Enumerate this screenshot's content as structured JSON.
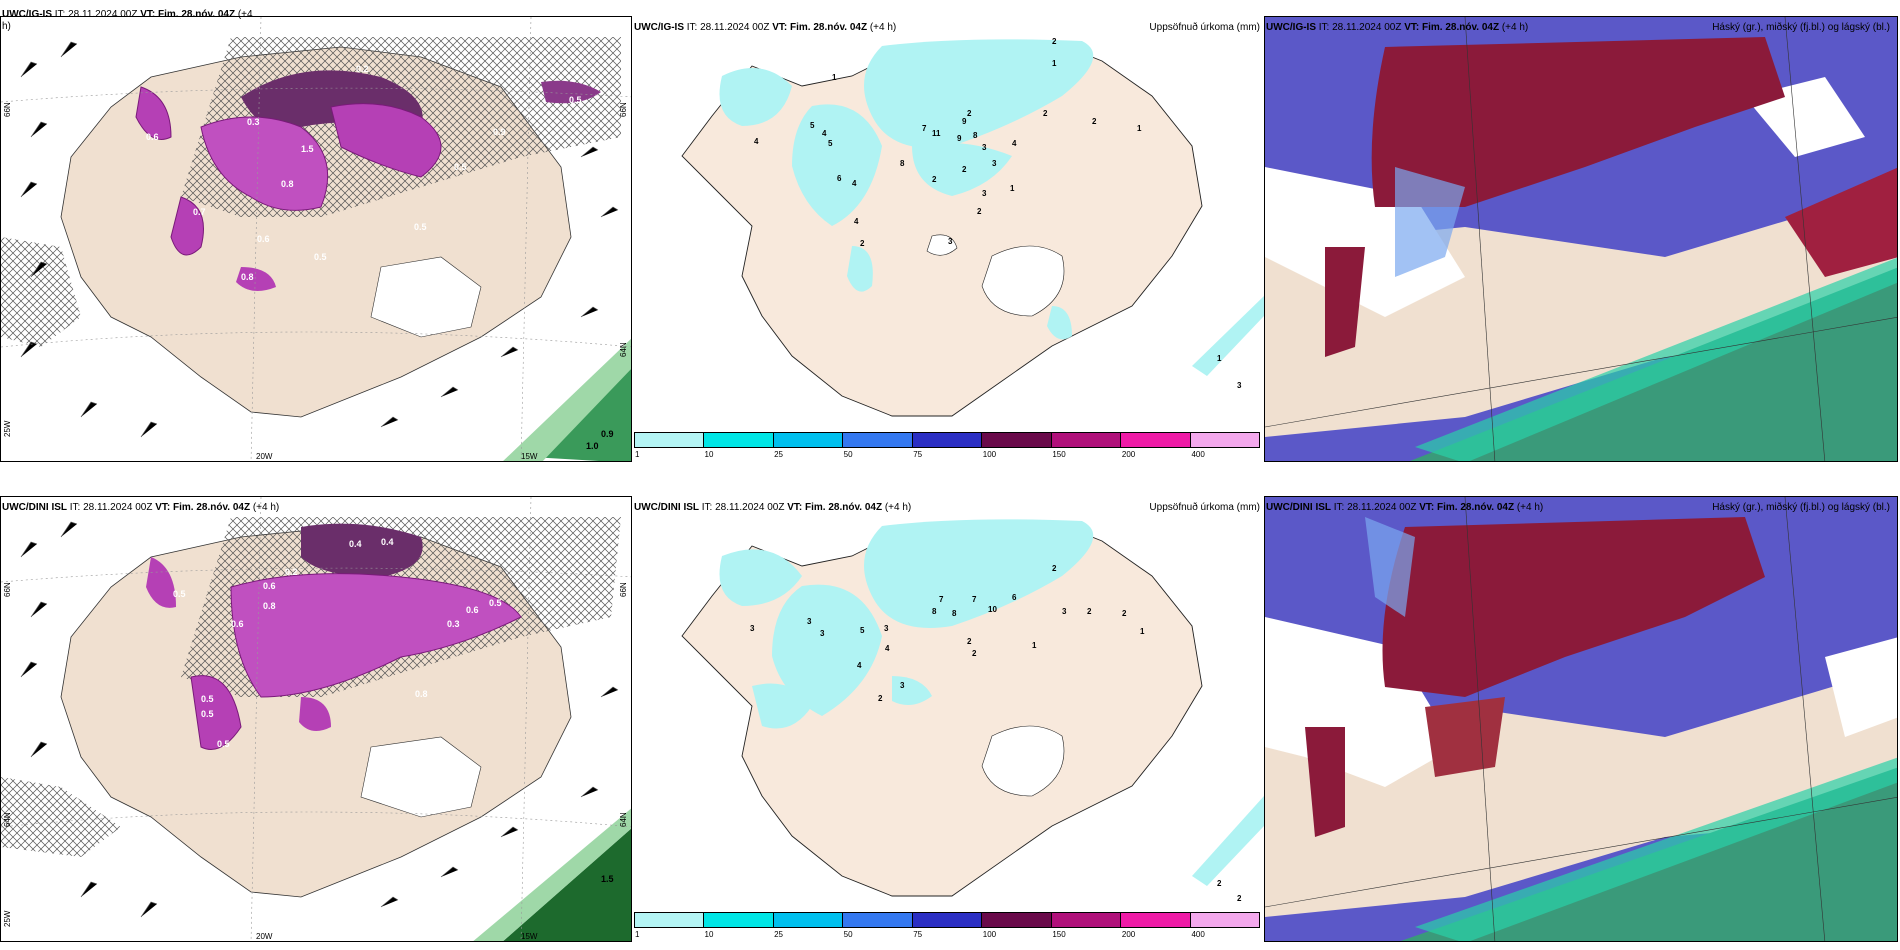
{
  "panels": {
    "top_left": {
      "model": "UWC/IG-IS",
      "it": "IT: 28.11.2024 00Z",
      "vt": "VT: Fim. 28.nóv. 04Z",
      "lead": "(+4",
      "lead2": "h)"
    },
    "top_mid": {
      "model": "UWC/IG-IS",
      "it": "IT: 28.11.2024 00Z",
      "vt": "VT: Fim. 28.nóv. 04Z",
      "lead": "(+4 h)",
      "right_label": "Uppsöfnuð úrkoma (mm)"
    },
    "top_right": {
      "model": "UWC/IG-IS",
      "it": "IT: 28.11.2024 00Z",
      "vt": "VT: Fim. 28.nóv. 04Z",
      "lead": "(+4 h)",
      "right_label": "Háský (gr.), miðský (fj.bl.) og lágský (bl.)"
    },
    "bot_left": {
      "model": "UWC/DINI ISL",
      "it": "IT: 28.11.2024 00Z",
      "vt": "VT: Fim. 28.nóv. 04Z",
      "lead": "(+4 h)"
    },
    "bot_mid": {
      "model": "UWC/DINI ISL",
      "it": "IT: 28.11.2024 00Z",
      "vt": "VT: Fim. 28.nóv. 04Z",
      "lead": "(+4 h)",
      "right_label": "Uppsöfnuð úrkoma (mm)"
    },
    "bot_right": {
      "model": "UWC/DINI ISL",
      "it": "IT: 28.11.2024 00Z",
      "vt": "VT: Fim. 28.nóv. 04Z",
      "lead": "(+4 h)",
      "right_label": "Háský (gr.), miðský (fj.bl.) og lágský (bl.)"
    }
  },
  "axes": {
    "lat_66": "66N",
    "lat_64": "64N",
    "lat_66b": "66N",
    "lat_64b": "64N",
    "lon_25": "25W",
    "lon_20": "20W",
    "lon_15": "15W"
  },
  "colorbar": {
    "ticks": [
      "1",
      "10",
      "25",
      "50",
      "75",
      "100",
      "150",
      "200",
      "400"
    ],
    "colors": [
      "#b4f5f5",
      "#00e6e6",
      "#00c0ee",
      "#3478f0",
      "#2b2fc4",
      "#6a0a4a",
      "#b0107a",
      "#ee1aa6",
      "#f3a8ec"
    ]
  },
  "precip_values_top": [
    "1",
    "4",
    "5",
    "4",
    "5",
    "4",
    "6",
    "8",
    "7",
    "11",
    "9",
    "8",
    "9",
    "3",
    "2",
    "2",
    "3",
    "4",
    "2",
    "1",
    "2",
    "3",
    "1",
    "2",
    "2",
    "2",
    "1",
    "2",
    "4",
    "3",
    "1",
    "3"
  ],
  "precip_values_bot": [
    "3",
    "3",
    "3",
    "4",
    "7",
    "8",
    "8",
    "7",
    "10",
    "6",
    "3",
    "2",
    "1",
    "2",
    "2",
    "4",
    "3",
    "1",
    "2",
    "2",
    "5",
    "3",
    "2",
    "2",
    "2"
  ],
  "left_values_top": [
    "0.2",
    "0.3",
    "0.9",
    "0.6",
    "0.7",
    "0.5",
    "0.6",
    "0.8",
    "1.5",
    "0.5",
    "0.8",
    "0.5",
    "0.5",
    "1.0",
    "0.9"
  ],
  "left_values_bot": [
    "0.4",
    "0.4",
    "0.2",
    "0.5",
    "0.6",
    "0.5",
    "0.8",
    "0.5",
    "0.6",
    "0.5",
    "0.5",
    "0.8",
    "0.3",
    "0.6",
    "1.5"
  ],
  "colors": {
    "land": "#f0e0d0",
    "ice": "#ffffff",
    "cyan": "#b0f3f3",
    "mid_blue": "#5b58c8",
    "high_red": "#8b1a3a",
    "low_green": "#3a9a7a"
  }
}
